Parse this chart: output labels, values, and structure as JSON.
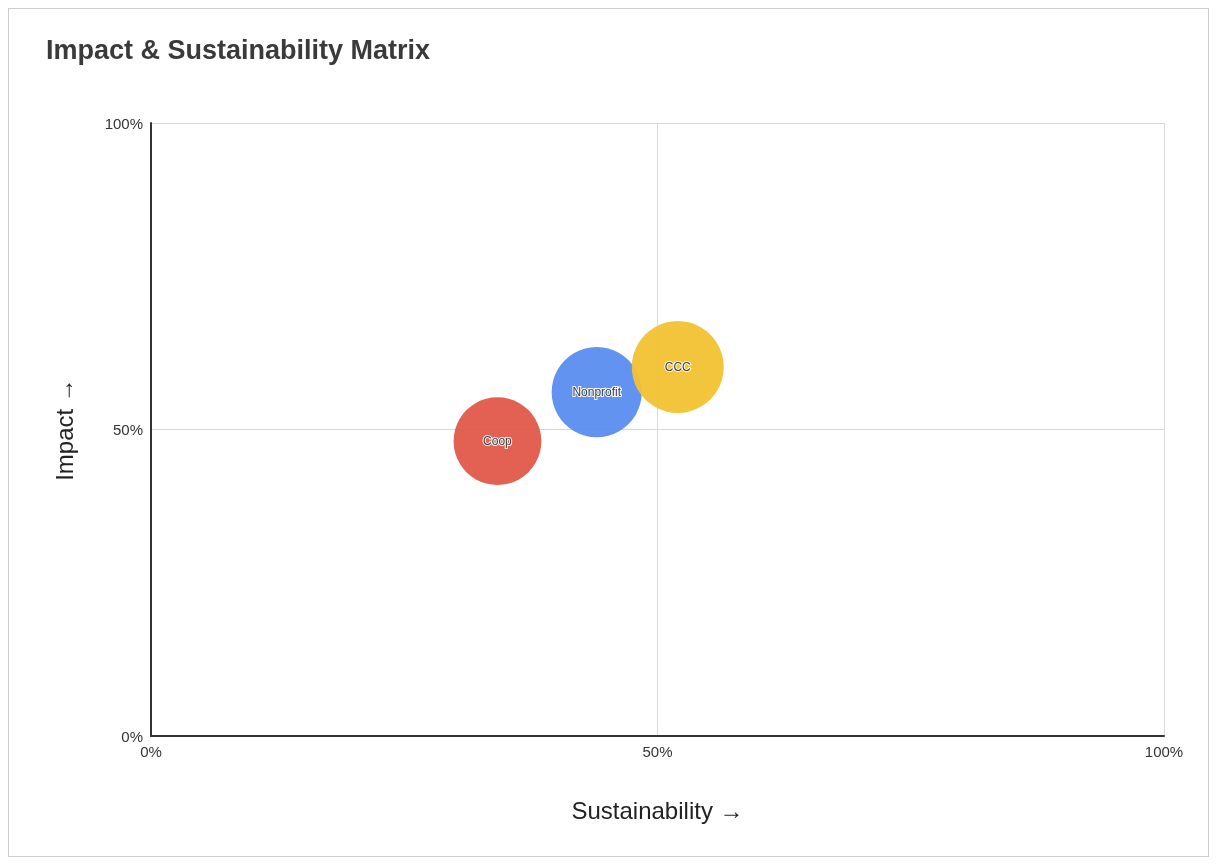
{
  "chart_data": {
    "type": "bubble",
    "title": "Impact & Sustainability Matrix",
    "xlabel": "Sustainability →",
    "ylabel": "Impact →",
    "series": [
      {
        "name": "Coop",
        "color": "#e0594a",
        "x": [
          34.2
        ],
        "values": [
          48.1
        ],
        "sizes": [
          0.91
        ]
      },
      {
        "name": "Nonprofit",
        "color": "#5b8def",
        "x": [
          44.0
        ],
        "values": [
          56.1
        ],
        "sizes": [
          0.96
        ]
      },
      {
        "name": "CCC",
        "color": "#f2c232",
        "x": [
          52.0
        ],
        "values": [
          60.2
        ],
        "sizes": [
          1
        ]
      }
    ],
    "xlim": [
      0,
      100
    ],
    "ylim": [
      0,
      100
    ],
    "xticks": [
      {
        "value": 0,
        "label": "0%"
      },
      {
        "value": 50,
        "label": "50%"
      },
      {
        "value": 100,
        "label": "100%"
      }
    ],
    "yticks": [
      {
        "value": 0,
        "label": "0%"
      },
      {
        "value": 50,
        "label": "50%"
      },
      {
        "value": 100,
        "label": "100%"
      }
    ],
    "grid": true,
    "legend": false
  }
}
